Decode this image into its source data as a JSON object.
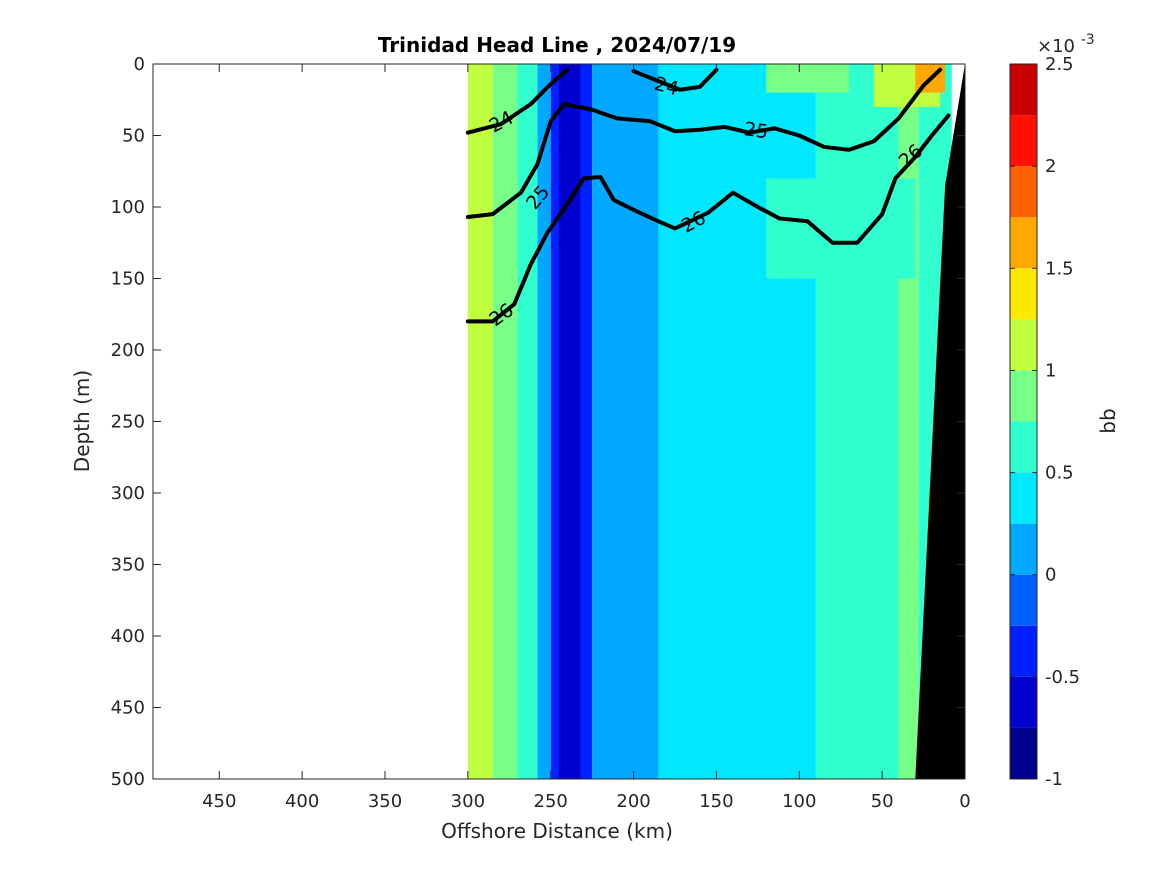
{
  "chart_data": {
    "type": "heatmap",
    "title": "Trinidad Head Line , 2024/07/19",
    "xlabel": "Offshore Distance (km)",
    "ylabel": "Depth (m)",
    "xlim": [
      490,
      0
    ],
    "ylim": [
      500,
      0
    ],
    "x_reversed": true,
    "y_reversed": true,
    "x_ticks": [
      "450",
      "400",
      "350",
      "300",
      "250",
      "200",
      "150",
      "100",
      "50",
      "0"
    ],
    "y_ticks": [
      "0",
      "50",
      "100",
      "150",
      "200",
      "250",
      "300",
      "350",
      "400",
      "450",
      "500"
    ],
    "grid": false,
    "colorbar": {
      "label": "bb",
      "exponent": "×10",
      "exponent_power": "-3",
      "range": [
        -1,
        2.5
      ],
      "ticks": [
        "2.5",
        "2",
        "1.5",
        "1",
        "0.5",
        "0",
        "-0.5",
        "-1"
      ],
      "levels": [
        -1,
        -0.75,
        -0.5,
        -0.25,
        0,
        0.25,
        0.5,
        0.75,
        1,
        1.25,
        1.5,
        1.75,
        2,
        2.25,
        2.5
      ],
      "colors": [
        "#00008f",
        "#0000cf",
        "#0020ff",
        "#0060ff",
        "#00a8ff",
        "#00e8ff",
        "#30ffd0",
        "#78ff88",
        "#c0ff40",
        "#ffe800",
        "#ffa800",
        "#ff6000",
        "#ff1000",
        "#c80000"
      ]
    },
    "data_x_range": [
      300,
      0
    ],
    "bottom_topography_color": "#000000",
    "bands": [
      {
        "x_from": 300,
        "x_to": 285,
        "value": 1.0
      },
      {
        "x_from": 285,
        "x_to": 270,
        "value": 0.75
      },
      {
        "x_from": 270,
        "x_to": 258,
        "value": 0.5
      },
      {
        "x_from": 258,
        "x_to": 250,
        "value": 0.1
      },
      {
        "x_from": 250,
        "x_to": 245,
        "value": -0.4
      },
      {
        "x_from": 245,
        "x_to": 232,
        "value": -0.65
      },
      {
        "x_from": 232,
        "x_to": 225,
        "value": -0.4
      },
      {
        "x_from": 225,
        "x_to": 210,
        "value": 0.1
      },
      {
        "x_from": 210,
        "x_to": 185,
        "value": 0.2
      },
      {
        "x_from": 185,
        "x_to": 90,
        "value": 0.45
      },
      {
        "x_from": 90,
        "x_to": 40,
        "value": 0.6
      },
      {
        "x_from": 40,
        "x_to": 28,
        "value": 0.8
      },
      {
        "x_from": 28,
        "x_to": 8,
        "value": 0.7
      }
    ],
    "surface_patches": [
      {
        "x_from": 120,
        "x_to": 70,
        "depth_from": 0,
        "depth_to": 20,
        "value": 0.9
      },
      {
        "x_from": 55,
        "x_to": 15,
        "depth_from": 0,
        "depth_to": 30,
        "value": 1.1
      },
      {
        "x_from": 30,
        "x_to": 12,
        "depth_from": 0,
        "depth_to": 20,
        "value": 1.6
      },
      {
        "x_from": 120,
        "x_to": 30,
        "depth_from": 80,
        "depth_to": 150,
        "value": 0.6
      }
    ],
    "contours": [
      {
        "level": "24",
        "bold": true,
        "points": [
          [
            300,
            48
          ],
          [
            280,
            42
          ],
          [
            262,
            28
          ],
          [
            250,
            14
          ],
          [
            240,
            4
          ]
        ],
        "label_at": [
          280,
          42
        ]
      },
      {
        "level": "24",
        "bold": true,
        "points": [
          [
            200,
            5
          ],
          [
            185,
            12
          ],
          [
            172,
            18
          ],
          [
            160,
            16
          ],
          [
            150,
            4
          ]
        ],
        "label_at": [
          180,
          15
        ]
      },
      {
        "level": "25",
        "bold": true,
        "points": [
          [
            300,
            107
          ],
          [
            285,
            105
          ],
          [
            268,
            90
          ],
          [
            258,
            70
          ],
          [
            250,
            40
          ],
          [
            242,
            28
          ],
          [
            225,
            32
          ],
          [
            210,
            38
          ],
          [
            190,
            40
          ],
          [
            175,
            47
          ],
          [
            160,
            46
          ],
          [
            145,
            44
          ],
          [
            130,
            48
          ],
          [
            115,
            45
          ],
          [
            100,
            50
          ],
          [
            85,
            58
          ],
          [
            70,
            60
          ],
          [
            55,
            54
          ],
          [
            40,
            38
          ],
          [
            25,
            15
          ],
          [
            15,
            4
          ]
        ],
        "label_at": [
          130,
          46
        ]
      },
      {
        "level": "26",
        "bold": true,
        "points": [
          [
            300,
            180
          ],
          [
            285,
            180
          ],
          [
            272,
            168
          ],
          [
            262,
            140
          ],
          [
            252,
            118
          ],
          [
            240,
            98
          ],
          [
            230,
            80
          ],
          [
            220,
            79
          ],
          [
            212,
            95
          ],
          [
            200,
            102
          ],
          [
            185,
            110
          ],
          [
            175,
            115
          ],
          [
            155,
            104
          ],
          [
            140,
            90
          ],
          [
            125,
            100
          ],
          [
            112,
            108
          ],
          [
            95,
            110
          ],
          [
            80,
            125
          ],
          [
            65,
            125
          ],
          [
            50,
            105
          ],
          [
            42,
            80
          ],
          [
            30,
            65
          ],
          [
            20,
            50
          ],
          [
            10,
            36
          ]
        ],
        "label_at": [
          40,
          65
        ]
      }
    ],
    "contour_labels": [
      {
        "text": "24",
        "x": 280,
        "y": 40,
        "angle": -28
      },
      {
        "text": "24",
        "x": 180,
        "y": 15,
        "angle": 15
      },
      {
        "text": "25",
        "x": 258,
        "y": 93,
        "angle": -50
      },
      {
        "text": "25",
        "x": 126,
        "y": 46,
        "angle": 8
      },
      {
        "text": "26",
        "x": 280,
        "y": 175,
        "angle": -35
      },
      {
        "text": "26",
        "x": 164,
        "y": 110,
        "angle": -28
      },
      {
        "text": "26",
        "x": 33,
        "y": 64,
        "angle": -42
      }
    ]
  }
}
